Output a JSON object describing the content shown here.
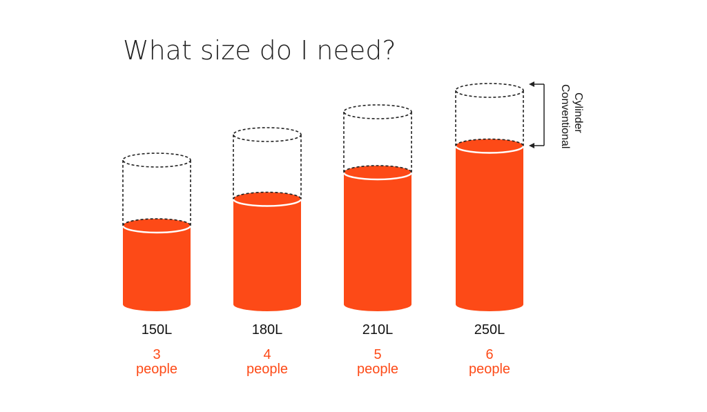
{
  "colors": {
    "fill": "#fd4a17",
    "dash": "#222222",
    "text": "#111111",
    "people": "#fd4a17"
  },
  "chart_data": {
    "type": "bar",
    "title": "What size do I need?",
    "categories": [
      "150L",
      "180L",
      "210L",
      "250L"
    ],
    "values": [
      3,
      4,
      5,
      6
    ],
    "people_label": "people",
    "annotation": "Conventional Cylinder",
    "annotation_lines": [
      "Conventional",
      "Cylinder"
    ]
  }
}
